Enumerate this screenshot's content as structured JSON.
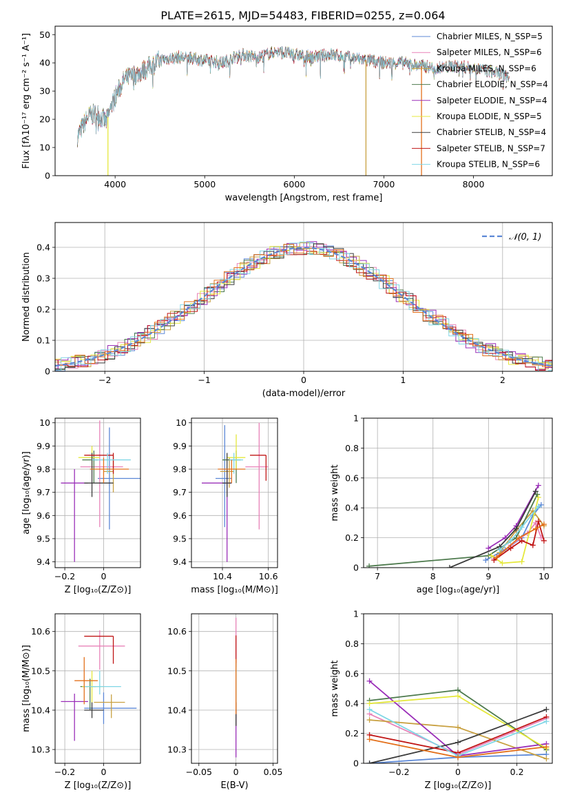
{
  "figure": {
    "title": "PLATE=2615, MJD=54483, FIBERID=0255, z=0.064"
  },
  "colors": {
    "palette": [
      "#5b87d6",
      "#e882b8",
      "#c8a040",
      "#4d7a4d",
      "#9a2eb8",
      "#e5e83c",
      "#3b3b3b",
      "#c01515",
      "#7fd6e6",
      "#e3701b"
    ],
    "grid": "#b0b0b0"
  },
  "chart_data": [
    {
      "id": "spectrum",
      "type": "line",
      "title": "PLATE=2615, MJD=54483, FIBERID=0255, z=0.064",
      "xlabel": "wavelength [Angstrom, rest frame]",
      "ylabel": "Flux [fλ10⁻¹⁷ erg cm⁻² s⁻¹ A⁻¹]",
      "xlim": [
        3330,
        8880
      ],
      "ylim": [
        0,
        53
      ],
      "xticks": [
        4000,
        5000,
        6000,
        7000,
        8000
      ],
      "yticks": [
        0,
        10,
        20,
        30,
        40,
        50
      ],
      "grid": false,
      "legend_position": "right",
      "legend": [
        "Chabrier MILES, N_SSP=5",
        "Salpeter MILES, N_SSP=6",
        "Kroupa MILES, N_SSP=6",
        "Chabrier ELODIE, N_SSP=4",
        "Salpeter ELODIE, N_SSP=4",
        "Kroupa ELODIE, N_SSP=5",
        "Chabrier STELIB, N_SSP=4",
        "Salpeter STELIB, N_SSP=7",
        "Kroupa STELIB, N_SSP=6"
      ],
      "continuum": {
        "x": [
          3580,
          3700,
          3800,
          3900,
          4000,
          4100,
          4300,
          4500,
          4700,
          5000,
          5200,
          5400,
          5600,
          5800,
          6000,
          6200,
          6400,
          6600,
          6800,
          7000,
          7200,
          7400,
          7600,
          7800,
          8000,
          8200,
          8400
        ],
        "y": [
          14,
          21,
          22,
          19,
          28,
          34,
          37,
          41,
          42,
          41,
          40,
          43,
          42,
          44,
          43,
          42,
          43,
          42,
          41,
          40,
          40,
          39,
          38,
          39,
          38,
          37,
          35
        ]
      },
      "dropouts": [
        3920,
        6800,
        7420
      ]
    },
    {
      "id": "residuals",
      "type": "histogram",
      "xlabel": "(data-model)/error",
      "ylabel": "Normed distribution",
      "xlim": [
        -2.5,
        2.5
      ],
      "ylim": [
        0,
        0.48
      ],
      "xticks": [
        -2,
        -1,
        0,
        1,
        2
      ],
      "yticks": [
        0.0,
        0.1,
        0.2,
        0.3,
        0.4
      ],
      "grid": true,
      "legend_position": "top-right",
      "legend": [
        "𝒩(0, 1)"
      ],
      "reference_curve": "standard normal"
    },
    {
      "id": "age-vs-Z",
      "type": "scatter",
      "xlabel": "Z [log₁₀(Z/Z⊙)]",
      "ylabel": "age  [log₁₀(age/yr)]",
      "xlim": [
        -0.25,
        0.19
      ],
      "ylim": [
        9.375,
        10.02
      ],
      "xticks": [
        -0.2,
        0.0
      ],
      "yticks": [
        9.4,
        9.5,
        9.6,
        9.7,
        9.8,
        9.9,
        10.0
      ],
      "grid": true,
      "points": [
        {
          "x": 0.03,
          "y": 9.76,
          "xerr": [
            0.06,
            0.16
          ],
          "yerr": [
            0.22,
            0.22
          ]
        },
        {
          "x": -0.02,
          "y": 9.81,
          "xerr": [
            0.1,
            0.12
          ],
          "yerr": [
            0.26,
            0.2
          ]
        },
        {
          "x": 0.05,
          "y": 9.79,
          "xerr": [
            0.05,
            0.0
          ],
          "yerr": [
            0.09,
            0.07
          ]
        },
        {
          "x": -0.05,
          "y": 9.84,
          "xerr": [
            0.06,
            0.02
          ],
          "yerr": [
            0.1,
            0.04
          ]
        },
        {
          "x": -0.15,
          "y": 9.74,
          "xerr": [
            0.07,
            0.07
          ],
          "yerr": [
            0.34,
            0.06
          ]
        },
        {
          "x": -0.06,
          "y": 9.85,
          "xerr": [
            0.07,
            0.04
          ],
          "yerr": [
            0.05,
            0.05
          ]
        },
        {
          "x": -0.06,
          "y": 9.74,
          "xerr": [
            0.04,
            0.11
          ],
          "yerr": [
            0.06,
            0.13
          ]
        },
        {
          "x": 0.05,
          "y": 9.86,
          "xerr": [
            0.15,
            0.0
          ],
          "yerr": [
            0.08,
            0.01
          ]
        },
        {
          "x": 0.02,
          "y": 9.84,
          "xerr": [
            0.08,
            0.12
          ],
          "yerr": [
            0.06,
            0.03
          ]
        },
        {
          "x": 0.0,
          "y": 9.8,
          "xerr": [
            0.07,
            0.13
          ],
          "yerr": [
            0.06,
            0.05
          ]
        }
      ]
    },
    {
      "id": "age-vs-mass",
      "type": "scatter",
      "xlabel": "mass [log₁₀(M/M⊙)]",
      "ylabel": "",
      "xlim": [
        10.265,
        10.64
      ],
      "ylim": [
        9.375,
        10.02
      ],
      "xticks": [
        10.4,
        10.6
      ],
      "yticks": [
        9.4,
        9.5,
        9.6,
        9.7,
        9.8,
        9.9,
        10.0
      ],
      "grid": true,
      "points": [
        {
          "x": 10.41,
          "y": 9.76,
          "xerr": [
            0.04,
            0.03
          ],
          "yerr": [
            0.21,
            0.23
          ]
        },
        {
          "x": 10.56,
          "y": 9.81,
          "xerr": [
            0.06,
            0.04
          ],
          "yerr": [
            0.27,
            0.19
          ]
        },
        {
          "x": 10.43,
          "y": 9.79,
          "xerr": [
            0.04,
            0.02
          ],
          "yerr": [
            0.07,
            0.06
          ]
        },
        {
          "x": 10.46,
          "y": 9.84,
          "xerr": [
            0.06,
            0.02
          ],
          "yerr": [
            0.1,
            0.04
          ]
        },
        {
          "x": 10.42,
          "y": 9.74,
          "xerr": [
            0.11,
            0.02
          ],
          "yerr": [
            0.34,
            0.06
          ]
        },
        {
          "x": 10.46,
          "y": 9.85,
          "xerr": [
            0.04,
            0.04
          ],
          "yerr": [
            0.05,
            0.1
          ]
        },
        {
          "x": 10.42,
          "y": 9.74,
          "xerr": [
            0.02,
            0.02
          ],
          "yerr": [
            0.06,
            0.13
          ]
        },
        {
          "x": 10.59,
          "y": 9.86,
          "xerr": [
            0.07,
            0.0
          ],
          "yerr": [
            0.11,
            0.0
          ]
        },
        {
          "x": 10.45,
          "y": 9.84,
          "xerr": [
            0.02,
            0.04
          ],
          "yerr": [
            0.06,
            0.03
          ]
        },
        {
          "x": 10.44,
          "y": 9.8,
          "xerr": [
            0.06,
            0.06
          ],
          "yerr": [
            0.06,
            0.04
          ]
        }
      ]
    },
    {
      "id": "weight-vs-age",
      "type": "line",
      "xlabel": "age  [log₁₀(age/yr)]",
      "ylabel": "mass weight",
      "xlim": [
        6.75,
        10.15
      ],
      "ylim": [
        0,
        1.0
      ],
      "xticks": [
        7,
        8,
        9,
        10
      ],
      "yticks": [
        0.0,
        0.2,
        0.4,
        0.6,
        0.8,
        1.0
      ],
      "grid": true,
      "series": [
        {
          "x": [
            8.95,
            9.3,
            9.6,
            9.8,
            9.95
          ],
          "y": [
            0.05,
            0.12,
            0.2,
            0.35,
            0.42
          ]
        },
        {
          "x": [
            9.1,
            9.4,
            9.7,
            9.85,
            9.95
          ],
          "y": [
            0.06,
            0.15,
            0.23,
            0.3,
            0.2
          ]
        },
        {
          "x": [
            9.2,
            9.5,
            9.8,
            10.0
          ],
          "y": [
            0.1,
            0.25,
            0.38,
            0.28
          ]
        },
        {
          "x": [
            6.85,
            9.0,
            9.5,
            9.88
          ],
          "y": [
            0.01,
            0.08,
            0.2,
            0.49
          ]
        },
        {
          "x": [
            9.0,
            9.3,
            9.5,
            9.9
          ],
          "y": [
            0.13,
            0.2,
            0.28,
            0.55
          ]
        },
        {
          "x": [
            9.05,
            9.25,
            9.6,
            9.9
          ],
          "y": [
            0.08,
            0.03,
            0.04,
            0.47
          ]
        },
        {
          "x": [
            8.3,
            9.2,
            9.5,
            9.85
          ],
          "y": [
            0.0,
            0.14,
            0.26,
            0.51
          ]
        },
        {
          "x": [
            9.1,
            9.4,
            9.6,
            9.8,
            9.9,
            10.0
          ],
          "y": [
            0.05,
            0.13,
            0.18,
            0.15,
            0.31,
            0.18
          ]
        },
        {
          "x": [
            9.2,
            9.4,
            9.6,
            9.9
          ],
          "y": [
            0.12,
            0.18,
            0.27,
            0.41
          ]
        },
        {
          "x": [
            9.15,
            9.55,
            9.85,
            10.0
          ],
          "y": [
            0.07,
            0.2,
            0.26,
            0.29
          ]
        }
      ]
    },
    {
      "id": "mass-vs-Z",
      "type": "scatter",
      "xlabel": "Z [log₁₀(Z/Z⊙)]",
      "ylabel": "mass [log₁₀(M/M⊙)]",
      "xlim": [
        -0.25,
        0.19
      ],
      "ylim": [
        10.265,
        10.645
      ],
      "xticks": [
        -0.2,
        0.0
      ],
      "yticks": [
        10.3,
        10.4,
        10.5,
        10.6
      ],
      "grid": true,
      "points": [
        {
          "x": 0.0,
          "y": 10.405,
          "xerr": [
            0.1,
            0.17
          ],
          "yerr": [
            0.04,
            0.04
          ]
        },
        {
          "x": -0.02,
          "y": 10.563,
          "xerr": [
            0.11,
            0.13
          ],
          "yerr": [
            0.06,
            0.04
          ]
        },
        {
          "x": 0.04,
          "y": 10.42,
          "xerr": [
            0.09,
            0.07
          ],
          "yerr": [
            0.04,
            0.02
          ]
        },
        {
          "x": -0.07,
          "y": 10.46,
          "xerr": [
            0.05,
            0.03
          ],
          "yerr": [
            0.06,
            0.02
          ]
        },
        {
          "x": -0.15,
          "y": 10.422,
          "xerr": [
            0.07,
            0.07
          ],
          "yerr": [
            0.1,
            0.02
          ]
        },
        {
          "x": -0.06,
          "y": 10.46,
          "xerr": [
            0.05,
            0.06
          ],
          "yerr": [
            0.04,
            0.04
          ]
        },
        {
          "x": -0.06,
          "y": 10.4,
          "xerr": [
            0.04,
            0.06
          ],
          "yerr": [
            0.02,
            0.02
          ]
        },
        {
          "x": 0.05,
          "y": 10.588,
          "xerr": [
            0.15,
            0.0
          ],
          "yerr": [
            0.07,
            0.0
          ]
        },
        {
          "x": -0.02,
          "y": 10.46,
          "xerr": [
            0.08,
            0.11
          ],
          "yerr": [
            0.02,
            0.04
          ]
        },
        {
          "x": -0.1,
          "y": 10.475,
          "xerr": [
            0.05,
            0.07
          ],
          "yerr": [
            0.06,
            0.06
          ]
        }
      ]
    },
    {
      "id": "mass-vs-EBV",
      "type": "scatter",
      "xlabel": "E(B-V)",
      "ylabel": "",
      "xlim": [
        -0.06,
        0.056
      ],
      "ylim": [
        10.265,
        10.645
      ],
      "xticks": [
        -0.05,
        0.0,
        0.05
      ],
      "yticks": [
        10.3,
        10.4,
        10.5,
        10.6
      ],
      "grid": true,
      "points": [
        {
          "x": 0.0,
          "y": 10.41,
          "yerr": [
            0.05,
            0.12
          ]
        },
        {
          "x": 0.0,
          "y": 10.565,
          "yerr": [
            0.08,
            0.07
          ]
        },
        {
          "x": 0.0,
          "y": 10.42,
          "yerr": [
            0.06,
            0.04
          ]
        },
        {
          "x": 0.0,
          "y": 10.46,
          "yerr": [
            0.08,
            0.06
          ]
        },
        {
          "x": 0.0,
          "y": 10.42,
          "yerr": [
            0.14,
            0.02
          ]
        },
        {
          "x": 0.0,
          "y": 10.46,
          "yerr": [
            0.06,
            0.06
          ]
        },
        {
          "x": 0.0,
          "y": 10.4,
          "yerr": [
            0.04,
            0.02
          ]
        },
        {
          "x": 0.0,
          "y": 10.59,
          "yerr": [
            0.08,
            0.0
          ]
        },
        {
          "x": 0.0,
          "y": 10.46,
          "yerr": [
            0.04,
            0.06
          ]
        },
        {
          "x": 0.0,
          "y": 10.47,
          "yerr": [
            0.08,
            0.06
          ]
        }
      ]
    },
    {
      "id": "weight-vs-Z",
      "type": "line",
      "xlabel": "Z [log₁₀(Z/Z⊙)]",
      "ylabel": "mass weight",
      "xlim": [
        -0.32,
        0.32
      ],
      "ylim": [
        0,
        1.0
      ],
      "xticks": [
        -0.2,
        0.0,
        0.2
      ],
      "yticks": [
        0.0,
        0.2,
        0.4,
        0.6,
        0.8,
        1.0
      ],
      "grid": true,
      "series": [
        {
          "x": [
            -0.3,
            0.0,
            0.3
          ],
          "y": [
            0.0,
            0.04,
            0.06
          ]
        },
        {
          "x": [
            -0.3,
            0.0,
            0.3
          ],
          "y": [
            0.33,
            0.06,
            0.3
          ]
        },
        {
          "x": [
            -0.3,
            0.0,
            0.3
          ],
          "y": [
            0.29,
            0.24,
            0.03
          ]
        },
        {
          "x": [
            -0.3,
            0.0,
            0.3
          ],
          "y": [
            0.42,
            0.49,
            0.09
          ]
        },
        {
          "x": [
            -0.3,
            0.0,
            0.3
          ],
          "y": [
            0.55,
            0.05,
            0.13
          ]
        },
        {
          "x": [
            -0.3,
            0.0,
            0.3
          ],
          "y": [
            0.4,
            0.45,
            0.1
          ]
        },
        {
          "x": [
            -0.3,
            0.0,
            0.3
          ],
          "y": [
            0.0,
            0.14,
            0.36
          ]
        },
        {
          "x": [
            -0.3,
            0.0,
            0.3
          ],
          "y": [
            0.19,
            0.07,
            0.31
          ]
        },
        {
          "x": [
            -0.3,
            0.0,
            0.3
          ],
          "y": [
            0.36,
            0.05,
            0.28
          ]
        },
        {
          "x": [
            -0.3,
            0.0,
            0.3
          ],
          "y": [
            0.16,
            0.04,
            0.11
          ]
        }
      ]
    }
  ]
}
